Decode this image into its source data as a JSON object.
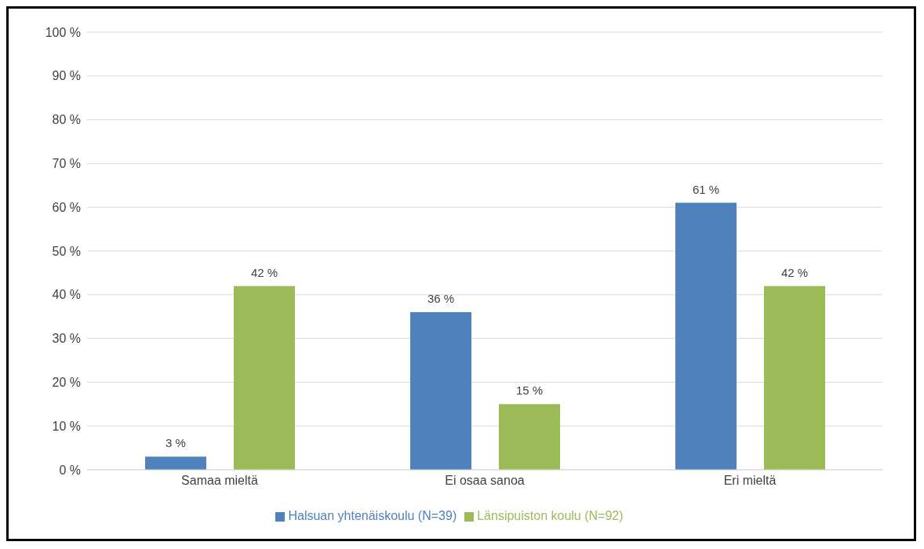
{
  "chart_data": {
    "type": "bar",
    "categories": [
      "Samaa mieltä",
      "Ei osaa sanoa",
      "Eri mieltä"
    ],
    "series": [
      {
        "name": "Halsuan yhtenäiskoulu (N=39)",
        "color": "#4f81bd",
        "values": [
          3,
          36,
          61
        ],
        "value_labels": [
          "3 %",
          "36 %",
          "61 %"
        ]
      },
      {
        "name": "Länsipuiston koulu (N=92)",
        "color": "#9bbb59",
        "values": [
          42,
          15,
          42
        ],
        "value_labels": [
          "42 %",
          "15 %",
          "42 %"
        ]
      }
    ],
    "ylim": [
      0,
      100
    ],
    "yticks": [
      {
        "value": 0,
        "label": "0 %"
      },
      {
        "value": 10,
        "label": "10 %"
      },
      {
        "value": 20,
        "label": "20 %"
      },
      {
        "value": 30,
        "label": "30 %"
      },
      {
        "value": 40,
        "label": "40 %"
      },
      {
        "value": 50,
        "label": "50 %"
      },
      {
        "value": 60,
        "label": "60 %"
      },
      {
        "value": 70,
        "label": "70 %"
      },
      {
        "value": 80,
        "label": "80 %"
      },
      {
        "value": 90,
        "label": "90 %"
      },
      {
        "value": 100,
        "label": "100 %"
      }
    ],
    "grid": "y",
    "legend": "bottom"
  }
}
